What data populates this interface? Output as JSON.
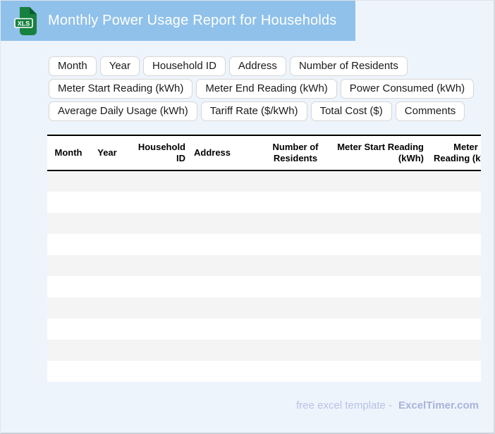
{
  "header": {
    "title": "Monthly Power Usage Report for Households",
    "file_icon_label": "XLS"
  },
  "colors": {
    "header_bg": "#8fc1ea",
    "page_bg": "#eef4fc",
    "row_stripe": "#f5f4f5",
    "icon_green": "#17813f",
    "icon_fold_green": "#0b5e2f",
    "footer_text": "#b8c2e6",
    "footer_brand": "#a7b2da"
  },
  "chips": {
    "rows": [
      [
        "Month",
        "Year",
        "Household ID",
        "Address",
        "Number of Residents"
      ],
      [
        "Meter Start Reading (kWh)",
        "Meter End Reading (kWh)",
        "Power Consumed (kWh)"
      ],
      [
        "Average Daily Usage (kWh)",
        "Tariff Rate ($/kWh)",
        "Total Cost ($)",
        "Comments"
      ]
    ]
  },
  "table": {
    "columns": [
      {
        "label": "Month",
        "align": "center",
        "width": 60
      },
      {
        "label": "Year",
        "align": "center",
        "width": 50
      },
      {
        "label": "Household ID",
        "align": "right",
        "width": 92
      },
      {
        "label": "Address",
        "align": "left",
        "width": 98
      },
      {
        "label": "Number of Residents",
        "align": "center",
        "width": 104
      },
      {
        "label": "Meter Start Reading (kWh)",
        "align": "right",
        "width": 136
      },
      {
        "label": "Meter End Reading (kWh)",
        "align": "right",
        "width": 105
      }
    ],
    "visible_empty_rows": 10
  },
  "footer": {
    "text": "free excel template -",
    "brand": "ExcelTimer.com"
  }
}
